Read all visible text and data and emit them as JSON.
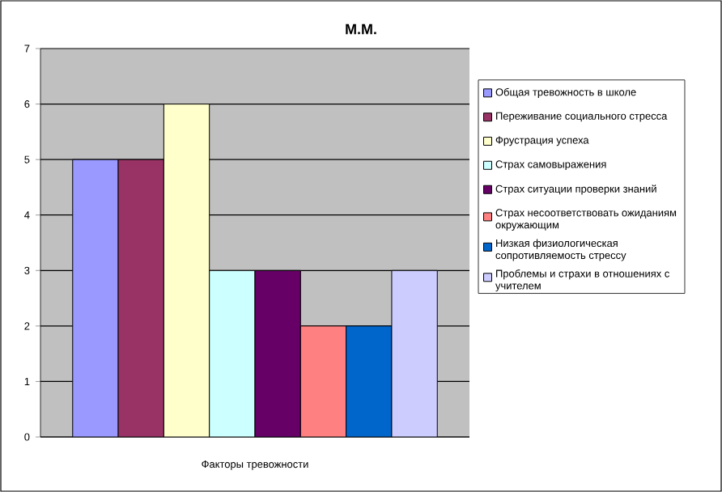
{
  "chart_data": {
    "type": "bar",
    "title": "М.М.",
    "categories": [
      "Факторы тревожности"
    ],
    "series": [
      {
        "name": "Общая тревожность в школе",
        "color": "#9999ff",
        "values": [
          5
        ]
      },
      {
        "name": "Переживание социального стресса",
        "color": "#993366",
        "values": [
          5
        ]
      },
      {
        "name": "Фрустрация успеха",
        "color": "#ffffcc",
        "values": [
          6
        ]
      },
      {
        "name": "Страх самовыражения",
        "color": "#ccffff",
        "values": [
          3
        ]
      },
      {
        "name": "Страх ситуации проверки знаний",
        "color": "#660066",
        "values": [
          3
        ]
      },
      {
        "name": "Страх несоответствовать ожиданиям окружающим",
        "color": "#ff8080",
        "values": [
          2
        ]
      },
      {
        "name": "Низкая физиологическая сопротивляемость стрессу",
        "color": "#0066cc",
        "values": [
          2
        ]
      },
      {
        "name": "Проблемы и страхи в отношениях с учителем",
        "color": "#ccccff",
        "values": [
          3
        ]
      }
    ],
    "ylim": [
      0,
      7
    ],
    "yticks": [
      0,
      1,
      2,
      3,
      4,
      5,
      6,
      7
    ],
    "grid": "y",
    "legend": "right"
  }
}
